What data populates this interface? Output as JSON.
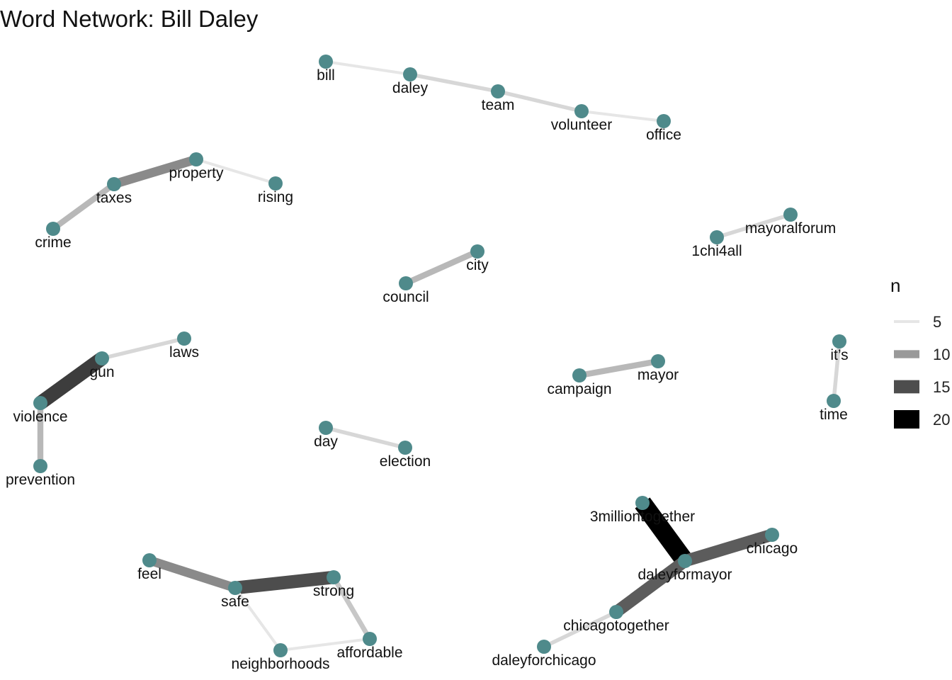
{
  "title": "Word Network: Bill Daley",
  "node_color": "#4f8a8b",
  "chart_data": {
    "type": "network",
    "title": "Word Network: Bill Daley",
    "edge_weight_label": "n",
    "legend": {
      "title": "n",
      "entries": [
        {
          "label": "5",
          "n": 5,
          "color": "#e6e6e6"
        },
        {
          "label": "10",
          "n": 10,
          "color": "#999999"
        },
        {
          "label": "15",
          "n": 15,
          "color": "#4d4d4d"
        },
        {
          "label": "20",
          "n": 20,
          "color": "#000000"
        }
      ]
    },
    "nodes": [
      "bill",
      "daley",
      "team",
      "volunteer",
      "office",
      "property",
      "taxes",
      "rising",
      "crime",
      "mayoralforum",
      "1chi4all",
      "city",
      "council",
      "laws",
      "gun",
      "violence",
      "prevention",
      "it’s",
      "time",
      "campaign",
      "mayor",
      "day",
      "election",
      "3milliontogether",
      "chicago",
      "daleyformayor",
      "chicagotogether",
      "daleyforchicago",
      "feel",
      "safe",
      "strong",
      "neighborhoods",
      "affordable"
    ],
    "edges": [
      {
        "from": "bill",
        "to": "daley",
        "n": 5
      },
      {
        "from": "daley",
        "to": "team",
        "n": 6
      },
      {
        "from": "team",
        "to": "volunteer",
        "n": 6
      },
      {
        "from": "volunteer",
        "to": "office",
        "n": 5
      },
      {
        "from": "taxes",
        "to": "property",
        "n": 11
      },
      {
        "from": "property",
        "to": "rising",
        "n": 5
      },
      {
        "from": "crime",
        "to": "taxes",
        "n": 8
      },
      {
        "from": "1chi4all",
        "to": "mayoralforum",
        "n": 6
      },
      {
        "from": "council",
        "to": "city",
        "n": 8
      },
      {
        "from": "gun",
        "to": "laws",
        "n": 6
      },
      {
        "from": "violence",
        "to": "gun",
        "n": 16
      },
      {
        "from": "violence",
        "to": "prevention",
        "n": 8
      },
      {
        "from": "it’s",
        "to": "time",
        "n": 6
      },
      {
        "from": "campaign",
        "to": "mayor",
        "n": 8
      },
      {
        "from": "day",
        "to": "election",
        "n": 6
      },
      {
        "from": "3milliontogether",
        "to": "daleyformayor",
        "n": 21
      },
      {
        "from": "daleyformayor",
        "to": "chicago",
        "n": 14
      },
      {
        "from": "daleyformayor",
        "to": "chicagotogether",
        "n": 14
      },
      {
        "from": "chicagotogether",
        "to": "daleyforchicago",
        "n": 6
      },
      {
        "from": "feel",
        "to": "safe",
        "n": 11
      },
      {
        "from": "safe",
        "to": "strong",
        "n": 15
      },
      {
        "from": "safe",
        "to": "neighborhoods",
        "n": 5
      },
      {
        "from": "neighborhoods",
        "to": "affordable",
        "n": 5
      },
      {
        "from": "strong",
        "to": "affordable",
        "n": 7
      }
    ]
  }
}
